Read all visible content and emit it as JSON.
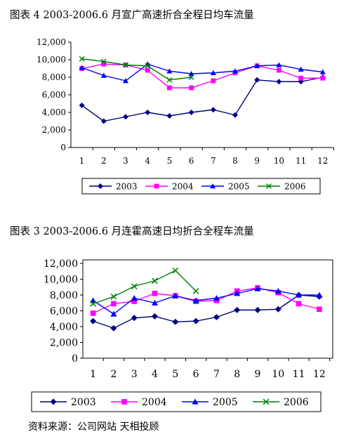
{
  "source_note": "资料来源：公司网站  天相投顾",
  "chart_data": [
    {
      "type": "line",
      "title": "图表 4   2003-2006.6 月宣广高速折合全程日均车流量",
      "categories": [
        "1",
        "2",
        "3",
        "4",
        "5",
        "6",
        "7",
        "8",
        "9",
        "10",
        "11",
        "12"
      ],
      "ylim": [
        0,
        12000
      ],
      "yticks": [
        "0",
        "2,000",
        "4,000",
        "6,000",
        "8,000",
        "10,000",
        "12,000"
      ],
      "grid": false,
      "legend": "bottom",
      "series": [
        {
          "name": "2003",
          "color": "#000080",
          "marker": "diamond",
          "values": [
            4800,
            3000,
            3500,
            4000,
            3600,
            4000,
            4300,
            3700,
            7700,
            7500,
            7500,
            8000
          ]
        },
        {
          "name": "2004",
          "color": "#ff00ff",
          "marker": "square",
          "values": [
            9000,
            9500,
            9400,
            8800,
            6800,
            6800,
            7600,
            8500,
            9300,
            8800,
            7900,
            7900
          ]
        },
        {
          "name": "2005",
          "color": "#0000ff",
          "marker": "triangle",
          "values": [
            9100,
            8200,
            7600,
            9500,
            8700,
            8400,
            8500,
            8700,
            9300,
            9400,
            8900,
            8600
          ]
        },
        {
          "name": "2006",
          "color": "#008000",
          "marker": "x",
          "values": [
            10100,
            9800,
            9400,
            9300,
            7700,
            8000,
            null,
            null,
            null,
            null,
            null,
            null
          ]
        }
      ]
    },
    {
      "type": "line",
      "title": "图表 3   2003-2006.6 月连霍高速日均折合全程车流量",
      "categories": [
        "1",
        "2",
        "3",
        "4",
        "5",
        "6",
        "7",
        "8",
        "9",
        "10",
        "11",
        "12"
      ],
      "ylim": [
        0,
        12000
      ],
      "yticks": [
        "0",
        "2,000",
        "4,000",
        "6,000",
        "8,000",
        "10,000",
        "12,000"
      ],
      "grid": false,
      "legend": "bottom",
      "series": [
        {
          "name": "2003",
          "color": "#000080",
          "marker": "diamond",
          "values": [
            4700,
            3800,
            5100,
            5300,
            4600,
            4700,
            5200,
            6100,
            6100,
            6200,
            8000,
            7800
          ]
        },
        {
          "name": "2004",
          "color": "#ff00ff",
          "marker": "square",
          "values": [
            5700,
            6900,
            7200,
            8200,
            7900,
            7200,
            7300,
            8500,
            8900,
            8300,
            6900,
            6200
          ]
        },
        {
          "name": "2005",
          "color": "#0000ff",
          "marker": "triangle",
          "values": [
            7300,
            5600,
            7600,
            7000,
            7900,
            7300,
            7600,
            8200,
            8800,
            8500,
            8000,
            8000
          ]
        },
        {
          "name": "2006",
          "color": "#008000",
          "marker": "x",
          "values": [
            6900,
            7800,
            9100,
            9800,
            11100,
            8500,
            null,
            null,
            null,
            null,
            null,
            null
          ]
        }
      ]
    }
  ]
}
